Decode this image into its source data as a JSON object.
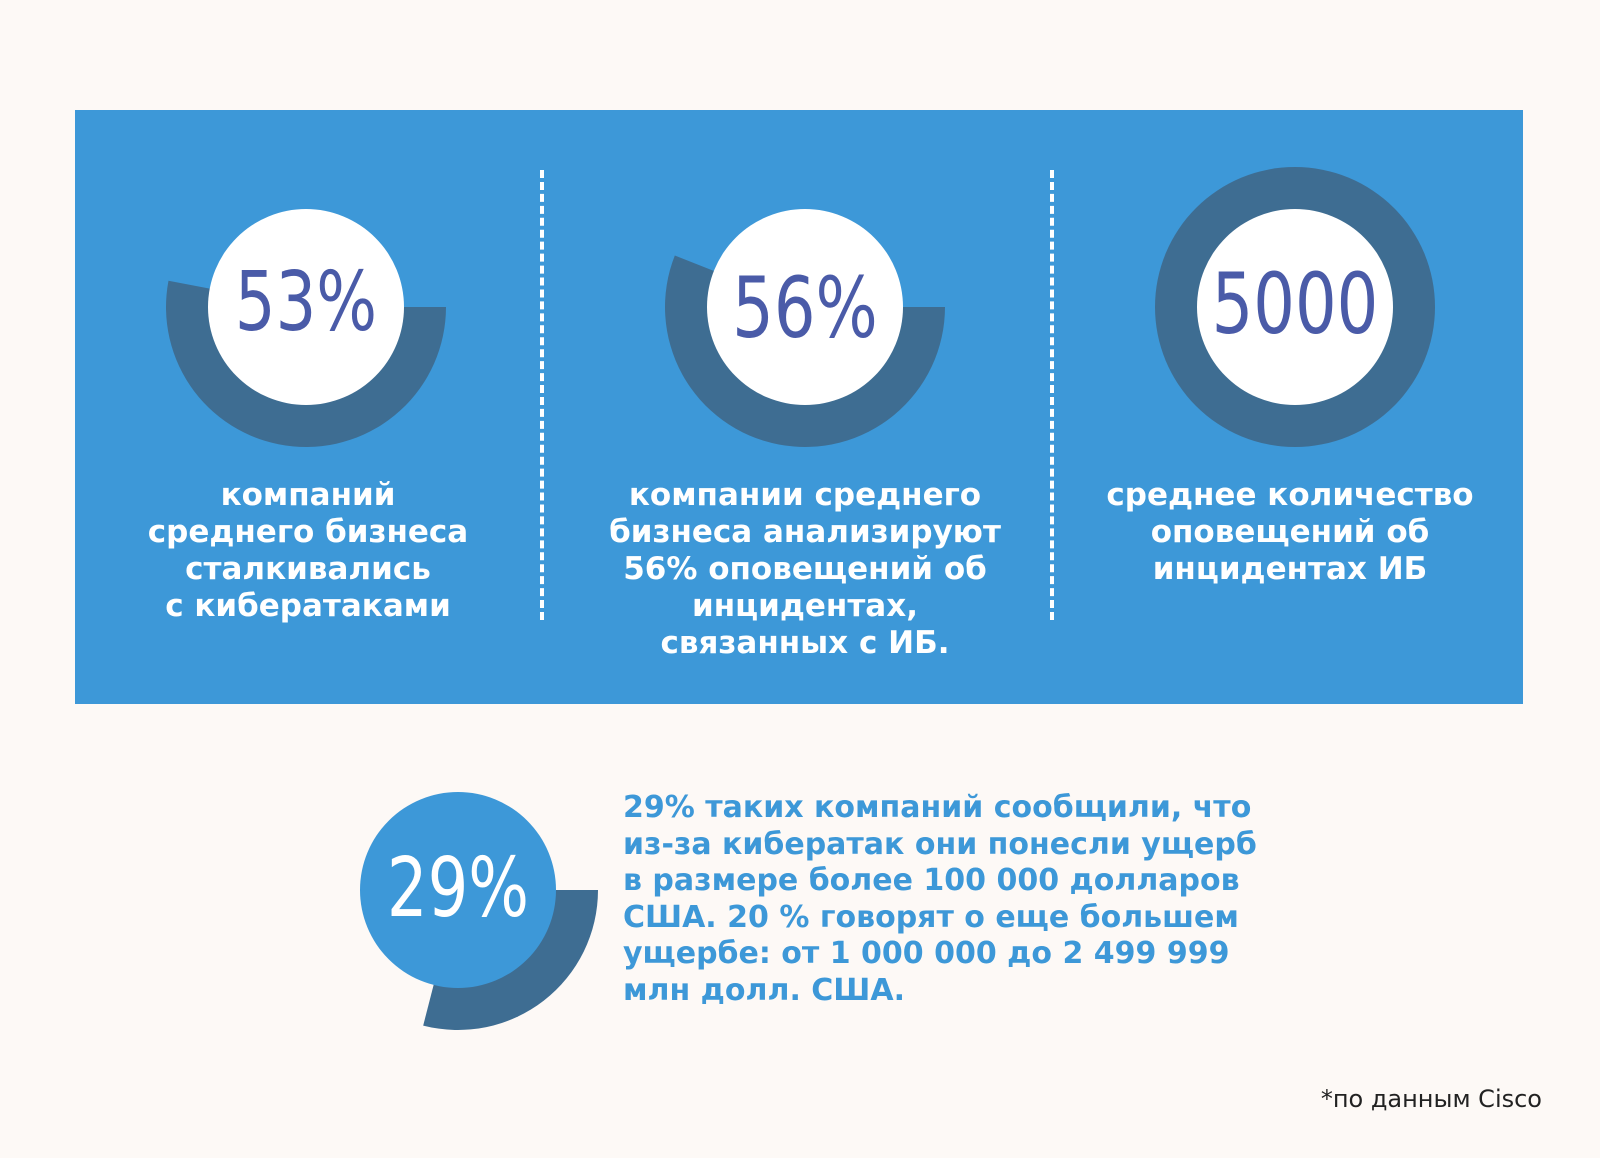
{
  "chart_data": [
    {
      "type": "pie",
      "value": 53,
      "label": "53%",
      "caption_lines": [
        "компаний",
        "среднего бизнеса",
        "сталкивались",
        "с кибератаками"
      ]
    },
    {
      "type": "pie",
      "value": 56,
      "label": "56%",
      "caption_lines": [
        "компании среднего",
        "бизнеса анализируют",
        "56% оповещений об",
        "инцидентах,",
        "связанных с ИБ."
      ]
    },
    {
      "type": "pie",
      "value": 100,
      "label": "5000",
      "caption_lines": [
        "среднее количество",
        "оповещений об",
        "инцидентах ИБ"
      ]
    },
    {
      "type": "pie",
      "value": 29,
      "label": "29%",
      "text_lines": [
        "29% таких компаний сообщили, что",
        "из-за кибератак они понесли ущерб",
        "в размере более 100 000 долларов",
        "США. 20 % говорят о еще большем",
        "ущербе: от 1 000 000 до 2 499 999",
        "млн долл. США."
      ]
    }
  ],
  "footnote": "*по данным Cisco",
  "colors": {
    "panel": "#3d98d8",
    "ring": "#3e6d92",
    "number": "#4a5ba8",
    "background": "#fdf9f6"
  }
}
